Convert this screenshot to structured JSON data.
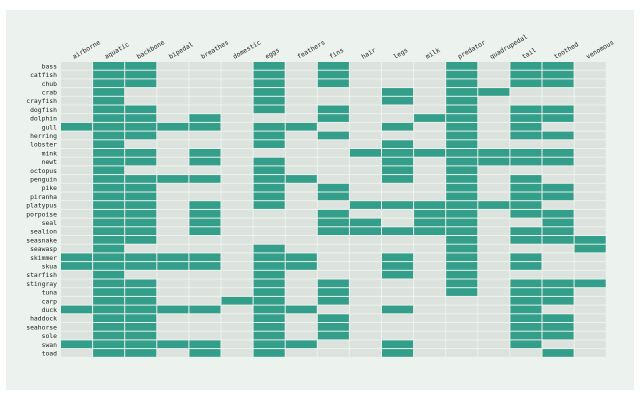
{
  "chart_data": {
    "type": "heatmap",
    "title": "",
    "xlabel": "",
    "ylabel": "",
    "columns": [
      "airborne",
      "aquatic",
      "backbone",
      "bipedal",
      "breathes",
      "domestic",
      "eggs",
      "feathers",
      "fins",
      "hair",
      "legs",
      "milk",
      "predator",
      "quadrupedal",
      "tail",
      "toothed",
      "venomous"
    ],
    "rows": [
      "bass",
      "catfish",
      "chub",
      "crab",
      "crayfish",
      "dogfish",
      "dolphin",
      "gull",
      "herring",
      "lobster",
      "mink",
      "newt",
      "octopus",
      "penguin",
      "pike",
      "piranha",
      "platypus",
      "porpoise",
      "seal",
      "sealion",
      "seasnake",
      "seawasp",
      "skimmer",
      "skua",
      "starfish",
      "stingray",
      "tuna",
      "carp",
      "duck",
      "haddock",
      "seahorse",
      "sole",
      "swan",
      "toad"
    ],
    "values": [
      [
        0,
        1,
        1,
        0,
        0,
        0,
        1,
        0,
        1,
        0,
        0,
        0,
        1,
        0,
        1,
        1,
        0
      ],
      [
        0,
        1,
        1,
        0,
        0,
        0,
        1,
        0,
        1,
        0,
        0,
        0,
        1,
        0,
        1,
        1,
        0
      ],
      [
        0,
        1,
        1,
        0,
        0,
        0,
        1,
        0,
        1,
        0,
        0,
        0,
        1,
        0,
        1,
        1,
        0
      ],
      [
        0,
        1,
        0,
        0,
        0,
        0,
        1,
        0,
        0,
        0,
        1,
        0,
        1,
        1,
        0,
        0,
        0
      ],
      [
        0,
        1,
        0,
        0,
        0,
        0,
        1,
        0,
        0,
        0,
        1,
        0,
        1,
        0,
        0,
        0,
        0
      ],
      [
        0,
        1,
        1,
        0,
        0,
        0,
        1,
        0,
        1,
        0,
        0,
        0,
        1,
        0,
        1,
        1,
        0
      ],
      [
        0,
        1,
        1,
        0,
        1,
        0,
        0,
        0,
        1,
        0,
        0,
        1,
        1,
        0,
        1,
        1,
        0
      ],
      [
        1,
        1,
        1,
        1,
        1,
        0,
        1,
        1,
        0,
        0,
        1,
        0,
        1,
        0,
        1,
        0,
        0
      ],
      [
        0,
        1,
        1,
        0,
        0,
        0,
        1,
        0,
        1,
        0,
        0,
        0,
        1,
        0,
        1,
        1,
        0
      ],
      [
        0,
        1,
        0,
        0,
        0,
        0,
        1,
        0,
        0,
        0,
        1,
        0,
        1,
        0,
        0,
        0,
        0
      ],
      [
        0,
        1,
        1,
        0,
        1,
        0,
        0,
        0,
        0,
        1,
        1,
        1,
        1,
        1,
        1,
        1,
        0
      ],
      [
        0,
        1,
        1,
        0,
        1,
        0,
        1,
        0,
        0,
        0,
        1,
        0,
        1,
        1,
        1,
        1,
        0
      ],
      [
        0,
        1,
        0,
        0,
        0,
        0,
        1,
        0,
        0,
        0,
        1,
        0,
        1,
        0,
        0,
        0,
        0
      ],
      [
        0,
        1,
        1,
        1,
        1,
        0,
        1,
        1,
        0,
        0,
        1,
        0,
        1,
        0,
        1,
        0,
        0
      ],
      [
        0,
        1,
        1,
        0,
        0,
        0,
        1,
        0,
        1,
        0,
        0,
        0,
        1,
        0,
        1,
        1,
        0
      ],
      [
        0,
        1,
        1,
        0,
        0,
        0,
        1,
        0,
        1,
        0,
        0,
        0,
        1,
        0,
        1,
        1,
        0
      ],
      [
        0,
        1,
        1,
        0,
        1,
        0,
        1,
        0,
        0,
        1,
        1,
        1,
        1,
        1,
        1,
        0,
        0
      ],
      [
        0,
        1,
        1,
        0,
        1,
        0,
        0,
        0,
        1,
        0,
        0,
        1,
        1,
        0,
        1,
        1,
        0
      ],
      [
        0,
        1,
        1,
        0,
        1,
        0,
        0,
        0,
        1,
        1,
        0,
        1,
        1,
        0,
        0,
        1,
        0
      ],
      [
        0,
        1,
        1,
        0,
        1,
        0,
        0,
        0,
        1,
        1,
        1,
        1,
        1,
        0,
        1,
        1,
        0
      ],
      [
        0,
        1,
        1,
        0,
        0,
        0,
        0,
        0,
        0,
        0,
        0,
        0,
        1,
        0,
        1,
        1,
        1
      ],
      [
        0,
        1,
        0,
        0,
        0,
        0,
        1,
        0,
        0,
        0,
        0,
        0,
        1,
        0,
        0,
        0,
        1
      ],
      [
        1,
        1,
        1,
        1,
        1,
        0,
        1,
        1,
        0,
        0,
        1,
        0,
        1,
        0,
        1,
        0,
        0
      ],
      [
        1,
        1,
        1,
        1,
        1,
        0,
        1,
        1,
        0,
        0,
        1,
        0,
        1,
        0,
        1,
        0,
        0
      ],
      [
        0,
        1,
        0,
        0,
        0,
        0,
        1,
        0,
        0,
        0,
        1,
        0,
        1,
        0,
        0,
        0,
        0
      ],
      [
        0,
        1,
        1,
        0,
        0,
        0,
        1,
        0,
        1,
        0,
        0,
        0,
        1,
        0,
        1,
        1,
        1
      ],
      [
        0,
        1,
        1,
        0,
        0,
        0,
        1,
        0,
        1,
        0,
        0,
        0,
        1,
        0,
        1,
        1,
        0
      ],
      [
        0,
        1,
        1,
        0,
        0,
        1,
        1,
        0,
        1,
        0,
        0,
        0,
        0,
        0,
        1,
        1,
        0
      ],
      [
        1,
        1,
        1,
        1,
        1,
        0,
        1,
        1,
        0,
        0,
        1,
        0,
        0,
        0,
        1,
        0,
        0
      ],
      [
        0,
        1,
        1,
        0,
        0,
        0,
        1,
        0,
        1,
        0,
        0,
        0,
        0,
        0,
        1,
        1,
        0
      ],
      [
        0,
        1,
        1,
        0,
        0,
        0,
        1,
        0,
        1,
        0,
        0,
        0,
        0,
        0,
        1,
        1,
        0
      ],
      [
        0,
        1,
        1,
        0,
        0,
        0,
        1,
        0,
        1,
        0,
        0,
        0,
        0,
        0,
        1,
        1,
        0
      ],
      [
        1,
        1,
        1,
        1,
        1,
        0,
        1,
        1,
        0,
        0,
        1,
        0,
        0,
        0,
        1,
        0,
        0
      ],
      [
        0,
        1,
        1,
        0,
        1,
        0,
        1,
        0,
        0,
        0,
        1,
        0,
        0,
        0,
        0,
        1,
        0
      ]
    ],
    "colors": {
      "on": "#339e8a",
      "off": "#dce2dd",
      "label": "#222222",
      "background": "#ecf2ed"
    }
  }
}
